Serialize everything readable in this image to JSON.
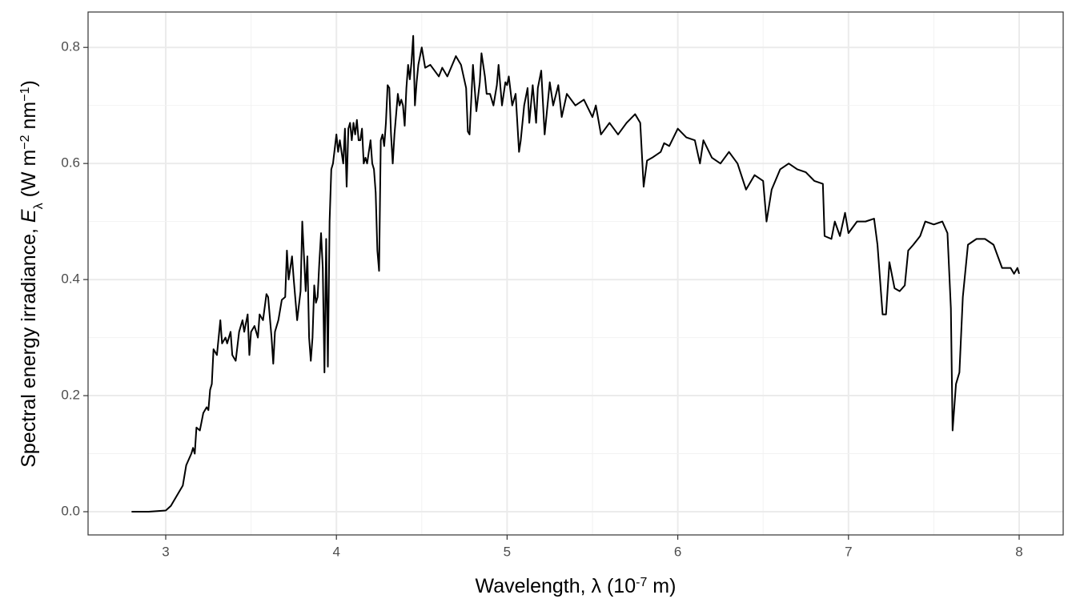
{
  "chart_data": {
    "type": "line",
    "xlabel": [
      "Wavelength, λ (10",
      "-7",
      " m)"
    ],
    "ylabel": [
      "Spectral energy irradiance, ",
      "E",
      "λ",
      " (W m",
      "−2",
      " nm",
      "−1",
      ")"
    ],
    "color": "#000000",
    "grid": true,
    "minor_grid": true,
    "xlim": [
      2.545,
      8.258
    ],
    "ylim": [
      -0.04,
      0.861
    ],
    "xticks": [
      3,
      4,
      5,
      6,
      7,
      8
    ],
    "yticks": [
      {
        "value": 0,
        "label": "0.0"
      },
      0.2,
      0.4,
      0.6,
      0.8
    ],
    "x": [
      2.8,
      2.9,
      3.0,
      3.03,
      3.06,
      3.1,
      3.12,
      3.15,
      3.16,
      3.17,
      3.18,
      3.2,
      3.22,
      3.24,
      3.25,
      3.26,
      3.27,
      3.28,
      3.3,
      3.32,
      3.33,
      3.35,
      3.36,
      3.38,
      3.39,
      3.41,
      3.43,
      3.45,
      3.46,
      3.48,
      3.49,
      3.5,
      3.52,
      3.54,
      3.55,
      3.57,
      3.59,
      3.6,
      3.62,
      3.63,
      3.64,
      3.66,
      3.68,
      3.7,
      3.71,
      3.72,
      3.74,
      3.75,
      3.77,
      3.79,
      3.8,
      3.82,
      3.83,
      3.84,
      3.85,
      3.86,
      3.87,
      3.88,
      3.89,
      3.9,
      3.91,
      3.92,
      3.93,
      3.94,
      3.95,
      3.96,
      3.97,
      3.98,
      4.0,
      4.01,
      4.02,
      4.04,
      4.05,
      4.06,
      4.07,
      4.08,
      4.09,
      4.1,
      4.11,
      4.12,
      4.13,
      4.14,
      4.15,
      4.16,
      4.17,
      4.18,
      4.2,
      4.21,
      4.22,
      4.23,
      4.24,
      4.25,
      4.26,
      4.27,
      4.28,
      4.29,
      4.3,
      4.31,
      4.32,
      4.33,
      4.34,
      4.36,
      4.37,
      4.38,
      4.39,
      4.4,
      4.41,
      4.42,
      4.43,
      4.44,
      4.45,
      4.46,
      4.47,
      4.48,
      4.5,
      4.52,
      4.55,
      4.6,
      4.62,
      4.65,
      4.7,
      4.73,
      4.76,
      4.77,
      4.78,
      4.8,
      4.82,
      4.84,
      4.85,
      4.87,
      4.88,
      4.9,
      4.92,
      4.94,
      4.95,
      4.97,
      4.99,
      5.0,
      5.01,
      5.03,
      5.05,
      5.07,
      5.08,
      5.1,
      5.12,
      5.13,
      5.15,
      5.17,
      5.18,
      5.2,
      5.22,
      5.24,
      5.25,
      5.27,
      5.3,
      5.32,
      5.35,
      5.4,
      5.45,
      5.5,
      5.52,
      5.55,
      5.6,
      5.65,
      5.7,
      5.75,
      5.78,
      5.8,
      5.82,
      5.85,
      5.9,
      5.92,
      5.95,
      6.0,
      6.05,
      6.1,
      6.13,
      6.15,
      6.2,
      6.25,
      6.3,
      6.35,
      6.4,
      6.45,
      6.5,
      6.52,
      6.55,
      6.6,
      6.65,
      6.7,
      6.75,
      6.8,
      6.85,
      6.86,
      6.9,
      6.92,
      6.95,
      6.98,
      7.0,
      7.05,
      7.1,
      7.15,
      7.17,
      7.2,
      7.22,
      7.24,
      7.27,
      7.3,
      7.33,
      7.35,
      7.38,
      7.42,
      7.45,
      7.5,
      7.55,
      7.58,
      7.6,
      7.61,
      7.63,
      7.65,
      7.67,
      7.7,
      7.75,
      7.8,
      7.85,
      7.9,
      7.95,
      7.97,
      7.99,
      8.0
    ],
    "values": [
      0,
      0,
      0.002,
      0.01,
      0.025,
      0.045,
      0.08,
      0.1,
      0.11,
      0.1,
      0.145,
      0.14,
      0.17,
      0.18,
      0.175,
      0.21,
      0.22,
      0.28,
      0.27,
      0.33,
      0.29,
      0.3,
      0.29,
      0.31,
      0.27,
      0.26,
      0.31,
      0.33,
      0.31,
      0.34,
      0.27,
      0.31,
      0.32,
      0.3,
      0.34,
      0.33,
      0.375,
      0.37,
      0.3,
      0.255,
      0.31,
      0.33,
      0.365,
      0.37,
      0.45,
      0.4,
      0.44,
      0.4,
      0.33,
      0.38,
      0.5,
      0.38,
      0.44,
      0.3,
      0.26,
      0.3,
      0.39,
      0.36,
      0.37,
      0.43,
      0.48,
      0.42,
      0.24,
      0.47,
      0.25,
      0.5,
      0.59,
      0.6,
      0.65,
      0.62,
      0.64,
      0.6,
      0.66,
      0.56,
      0.66,
      0.67,
      0.64,
      0.67,
      0.65,
      0.675,
      0.64,
      0.64,
      0.66,
      0.6,
      0.61,
      0.6,
      0.64,
      0.6,
      0.59,
      0.55,
      0.45,
      0.415,
      0.64,
      0.65,
      0.63,
      0.67,
      0.735,
      0.73,
      0.65,
      0.6,
      0.65,
      0.72,
      0.7,
      0.71,
      0.7,
      0.665,
      0.73,
      0.77,
      0.745,
      0.775,
      0.82,
      0.7,
      0.74,
      0.77,
      0.8,
      0.765,
      0.77,
      0.75,
      0.765,
      0.75,
      0.785,
      0.77,
      0.73,
      0.655,
      0.65,
      0.77,
      0.69,
      0.74,
      0.79,
      0.75,
      0.72,
      0.72,
      0.7,
      0.735,
      0.77,
      0.7,
      0.74,
      0.735,
      0.75,
      0.7,
      0.72,
      0.62,
      0.64,
      0.7,
      0.73,
      0.67,
      0.735,
      0.67,
      0.73,
      0.76,
      0.65,
      0.71,
      0.74,
      0.7,
      0.735,
      0.68,
      0.72,
      0.7,
      0.71,
      0.68,
      0.7,
      0.65,
      0.67,
      0.65,
      0.67,
      0.685,
      0.67,
      0.56,
      0.605,
      0.61,
      0.62,
      0.635,
      0.63,
      0.66,
      0.645,
      0.64,
      0.6,
      0.64,
      0.61,
      0.6,
      0.62,
      0.6,
      0.555,
      0.58,
      0.57,
      0.5,
      0.555,
      0.59,
      0.6,
      0.59,
      0.585,
      0.57,
      0.565,
      0.475,
      0.47,
      0.5,
      0.475,
      0.515,
      0.48,
      0.5,
      0.5,
      0.505,
      0.46,
      0.34,
      0.34,
      0.43,
      0.385,
      0.38,
      0.39,
      0.45,
      0.46,
      0.475,
      0.5,
      0.495,
      0.5,
      0.48,
      0.35,
      0.14,
      0.22,
      0.24,
      0.37,
      0.46,
      0.47,
      0.47,
      0.46,
      0.42,
      0.42,
      0.41,
      0.42,
      0.41
    ]
  }
}
